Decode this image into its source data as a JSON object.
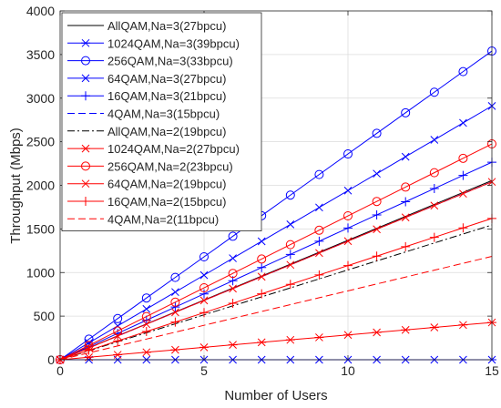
{
  "chart_data": {
    "type": "line",
    "xlabel": "Number of Users",
    "ylabel": "Throughput (Mbps)",
    "xlim": [
      0,
      15
    ],
    "ylim": [
      0,
      4000
    ],
    "xticks": [
      "0",
      "5",
      "10",
      "15"
    ],
    "yticks": [
      "0",
      "500",
      "1000",
      "1500",
      "2000",
      "2500",
      "3000",
      "3500",
      "4000"
    ],
    "grid": true,
    "legend_position": "top-left",
    "x": [
      0,
      1,
      2,
      3,
      4,
      5,
      6,
      7,
      8,
      9,
      10,
      11,
      12,
      13,
      14,
      15
    ],
    "series": [
      {
        "name": "AllQAM,Na=3(27bpcu)",
        "color": "#000000",
        "dash": "solid",
        "marker": "none",
        "slope": 137
      },
      {
        "name": "1024QAM,Na=3(39bpcu)",
        "color": "#0000ff",
        "dash": "solid",
        "marker": "asterisk",
        "slope": 0
      },
      {
        "name": "256QAM,Na=3(33bpcu)",
        "color": "#0000ff",
        "dash": "solid",
        "marker": "circle",
        "slope": 236
      },
      {
        "name": "64QAM,Na=3(27bpcu)",
        "color": "#0000ff",
        "dash": "solid",
        "marker": "x",
        "slope": 194
      },
      {
        "name": "16QAM,Na=3(21bpcu)",
        "color": "#0000ff",
        "dash": "solid",
        "marker": "plus",
        "slope": 151
      },
      {
        "name": "4QAM,Na=3(15bpcu)",
        "color": "#0000ff",
        "dash": "dashed",
        "marker": "none",
        "slope": 136
      },
      {
        "name": "AllQAM,Na=2(19bpcu)",
        "color": "#000000",
        "dash": "dashdot",
        "marker": "none",
        "slope": 103
      },
      {
        "name": "1024QAM,Na=2(27bpcu)",
        "color": "#ff0000",
        "dash": "solid",
        "marker": "asterisk",
        "slope": 28.5
      },
      {
        "name": "256QAM,Na=2(23bpcu)",
        "color": "#ff0000",
        "dash": "solid",
        "marker": "circle",
        "slope": 165
      },
      {
        "name": "64QAM,Na=2(19bpcu)",
        "color": "#ff0000",
        "dash": "solid",
        "marker": "x",
        "slope": 136
      },
      {
        "name": "16QAM,Na=2(15bpcu)",
        "color": "#ff0000",
        "dash": "solid",
        "marker": "plus",
        "slope": 108
      },
      {
        "name": "4QAM,Na=2(11bpcu)",
        "color": "#ff0000",
        "dash": "dashed",
        "marker": "none",
        "slope": 79
      }
    ]
  }
}
